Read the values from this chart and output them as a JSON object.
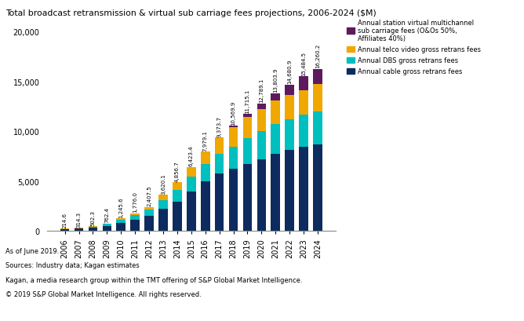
{
  "years": [
    2006,
    2007,
    2008,
    2009,
    2010,
    2011,
    2012,
    2013,
    2014,
    2015,
    2016,
    2017,
    2018,
    2019,
    2020,
    2021,
    2022,
    2023,
    2024
  ],
  "totals": [
    214.6,
    314.3,
    502.3,
    762.4,
    1245.6,
    1776.0,
    2407.5,
    3620.1,
    4856.7,
    6423.4,
    7979.1,
    9373.7,
    10569.9,
    11715.1,
    12789.1,
    13803.9,
    14680.9,
    15484.5,
    16260.2
  ],
  "cable": [
    160,
    230,
    340,
    500,
    800,
    1100,
    1500,
    2200,
    2900,
    3900,
    4950,
    5700,
    6200,
    6700,
    7200,
    7750,
    8100,
    8400,
    8700
  ],
  "dbs": [
    30,
    50,
    100,
    180,
    320,
    480,
    620,
    900,
    1150,
    1500,
    1750,
    2000,
    2200,
    2600,
    2800,
    3000,
    3100,
    3200,
    3300
  ],
  "telco": [
    20,
    30,
    55,
    75,
    120,
    180,
    270,
    500,
    770,
    990,
    1230,
    1600,
    1900,
    2100,
    2200,
    2300,
    2400,
    2500,
    2700
  ],
  "virtual": [
    0,
    0,
    0,
    0,
    0,
    0,
    0,
    0,
    0,
    0,
    0,
    0,
    200,
    300,
    600,
    750,
    1050,
    1350,
    1550
  ],
  "colors": {
    "cable": "#0d2b5e",
    "dbs": "#00bfbf",
    "telco": "#f0a800",
    "virtual": "#5e1a5e"
  },
  "legend_labels": [
    "Annual station virtual multichannel\nsub carriage fees (O&Os 50%,\nAffiliates 40%)",
    "Annual telco video gross retrans fees",
    "Annual DBS gross retrans fees",
    "Annual cable gross retrans fees"
  ],
  "title": "Total broadcast retransmission & virtual sub carriage fees projections, 2006-2024 ($M)",
  "ylim": [
    0,
    20000
  ],
  "yticks": [
    0,
    5000,
    10000,
    15000,
    20000
  ],
  "footer_lines": [
    "As of June 2019.",
    "Sources: Industry data; Kagan estimates",
    "Kagan, a media research group within the TMT offering of S&P Global Market Intelligence.",
    "© 2019 S&P Global Market Intelligence. All rights reserved."
  ],
  "background_color": "#ffffff"
}
